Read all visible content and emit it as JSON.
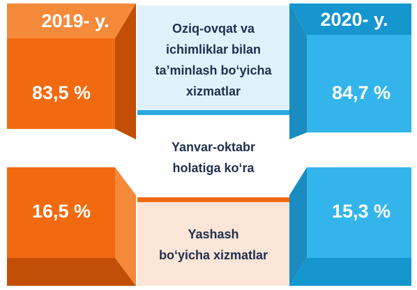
{
  "left": {
    "year": "2019- y.",
    "top_value": "83,5 %",
    "bottom_value": "16,5 %"
  },
  "right": {
    "year": "2020- y.",
    "top_value": "84,7 %",
    "bottom_value": "15,3 %"
  },
  "top_label": [
    "Oziq-ovqat va",
    "ichimliklar bilan",
    "ta’minlash bo‘yicha",
    "xizmatlar"
  ],
  "middle_label": [
    "Yanvar-oktabr",
    "holatiga ko‘ra"
  ],
  "bottom_label": [
    "Yashash",
    "bo‘yicha xizmatlar"
  ]
}
